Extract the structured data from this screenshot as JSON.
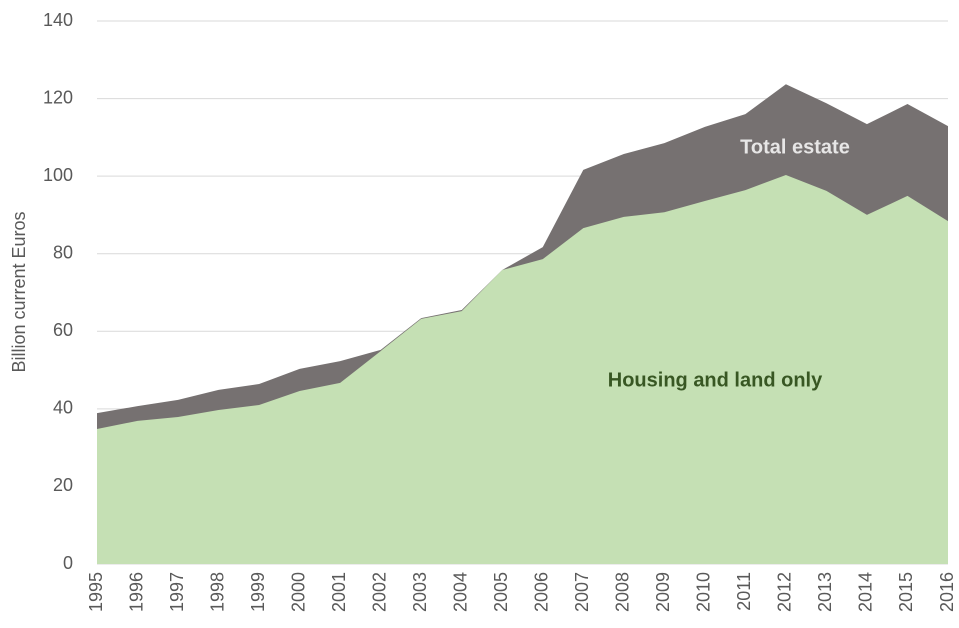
{
  "chart_data": {
    "type": "area",
    "y_label": "Billion current Euros",
    "x": [
      1995,
      1996,
      1997,
      1998,
      1999,
      2000,
      2001,
      2002,
      2003,
      2004,
      2005,
      2006,
      2007,
      2008,
      2009,
      2010,
      2011,
      2012,
      2013,
      2014,
      2015,
      2016
    ],
    "xlim": [
      1995,
      2016
    ],
    "xticks": [
      1995,
      1996,
      1997,
      1998,
      1999,
      2000,
      2001,
      2002,
      2003,
      2004,
      2005,
      2006,
      2007,
      2008,
      2009,
      2010,
      2011,
      2012,
      2013,
      2014,
      2015,
      2016
    ],
    "series": [
      {
        "name": "Total  estate",
        "color": "#767171",
        "values": [
          38.9,
          40.7,
          42.3,
          44.9,
          46.4,
          50.3,
          52.3,
          55.2,
          63.4,
          65.5,
          75.8,
          81.7,
          101.6,
          105.7,
          108.5,
          112.7,
          116,
          123.7,
          118.8,
          113.4,
          118.6,
          112.9
        ]
      },
      {
        "name": "Housing and land only",
        "color": "#c5e0b4",
        "values": [
          34.8,
          36.9,
          37.9,
          39.7,
          41,
          44.6,
          46.7,
          54.9,
          63.2,
          65.2,
          75.8,
          78.6,
          86.6,
          89.5,
          90.7,
          93.6,
          96.4,
          100.3,
          96.2,
          90,
          94.9,
          88.4
        ]
      }
    ],
    "ylim": [
      0,
      140
    ],
    "yticks": [
      0,
      20,
      40,
      60,
      80,
      100,
      120,
      140
    ],
    "grid": true
  }
}
